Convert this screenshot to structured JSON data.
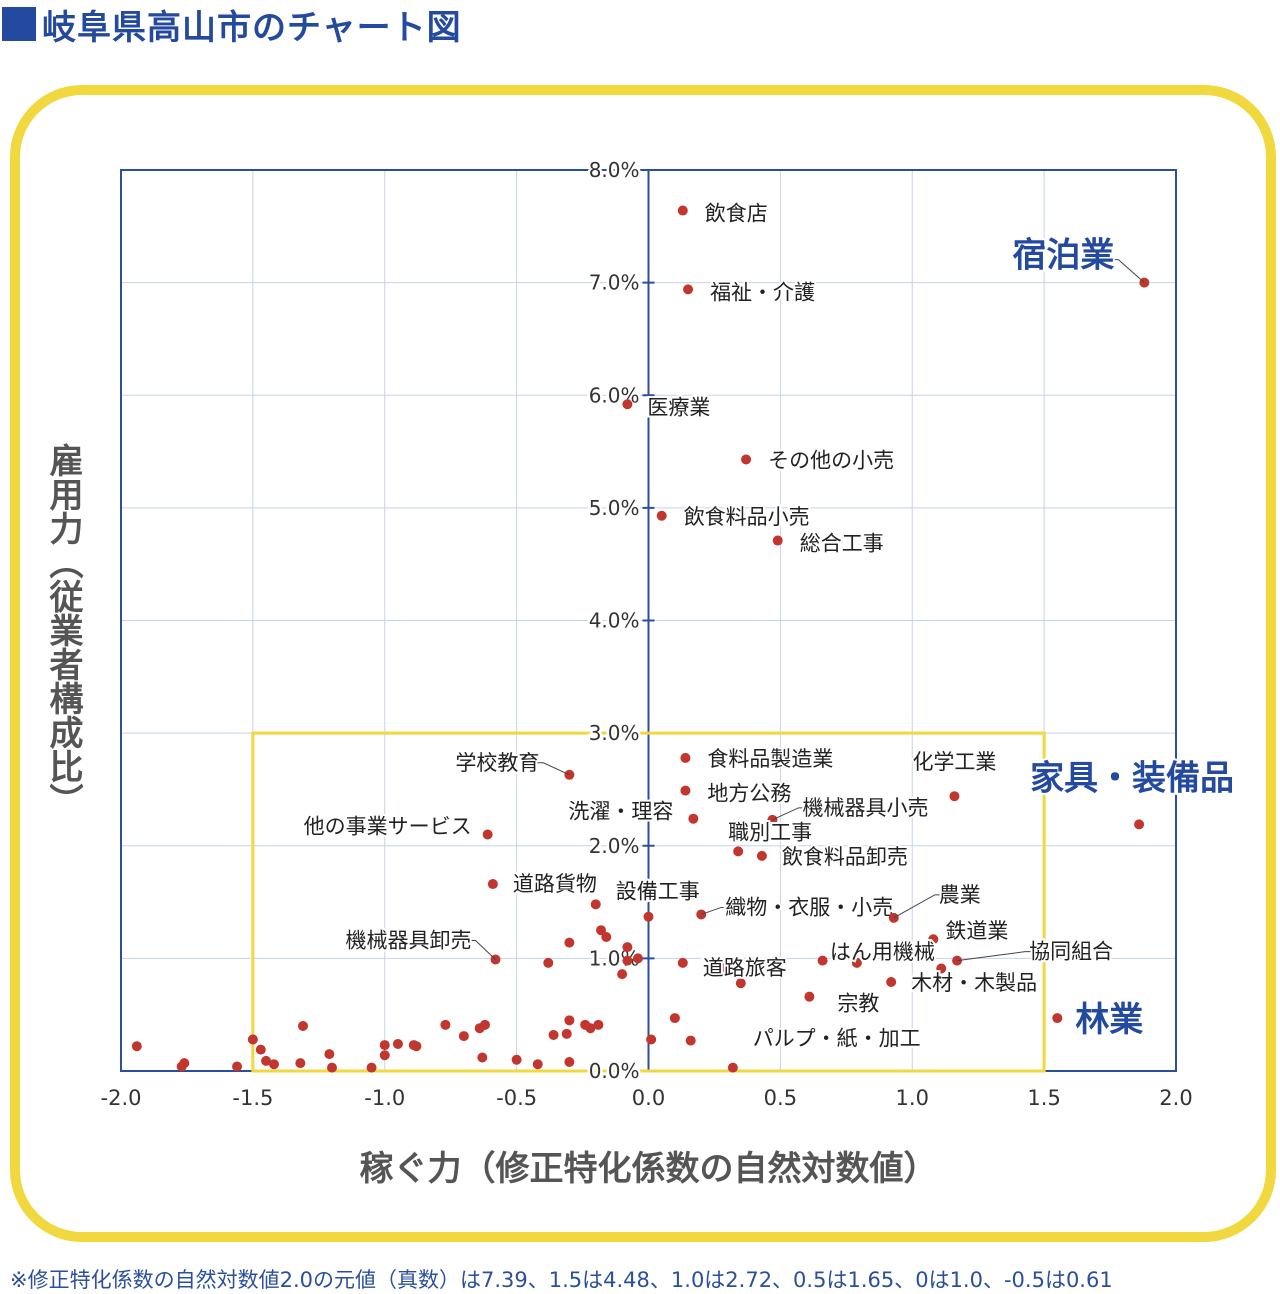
{
  "title": "岐阜県高山市のチャート図",
  "footnote": "※修正特化係数の自然対数値2.0の元値（真数）は7.39、1.5は4.48、1.0は2.72、0.5は1.65、0は1.0、-0.5は0.61",
  "colors": {
    "accent": "#244aa0",
    "frame": "#f0d83e",
    "point": "#c1362e",
    "grid": "#c5d3e8",
    "axis": "#2b4f9d"
  },
  "chart_data": {
    "type": "scatter",
    "xlabel": "稼ぐ力（修正特化係数の自然対数値）",
    "ylabel": "雇用力（従業者構成比）",
    "xlim": [
      -2.0,
      2.0
    ],
    "ylim": [
      0.0,
      8.0
    ],
    "x_ticks": [
      "-2.0",
      "-1.5",
      "-1.0",
      "-0.5",
      "0.0",
      "0.5",
      "1.0",
      "1.5",
      "2.0"
    ],
    "y_ticks": [
      "0.0%",
      "1.0%",
      "2.0%",
      "3.0%",
      "4.0%",
      "5.0%",
      "6.0%",
      "7.0%",
      "8.0%"
    ],
    "grid": true,
    "highlight_box": {
      "x": [
        -1.5,
        1.5
      ],
      "y": [
        0.0,
        3.0
      ]
    },
    "labeled_points": [
      {
        "label": "飲食店",
        "x": 0.13,
        "y": 7.64
      },
      {
        "label": "宿泊業",
        "x": 1.88,
        "y": 7.0,
        "emphasis": true
      },
      {
        "label": "福祉・介護",
        "x": 0.15,
        "y": 6.94
      },
      {
        "label": "医療業",
        "x": -0.08,
        "y": 5.92
      },
      {
        "label": "その他の小売",
        "x": 0.37,
        "y": 5.43
      },
      {
        "label": "飲食料品小売",
        "x": 0.05,
        "y": 4.93
      },
      {
        "label": "総合工事",
        "x": 0.49,
        "y": 4.71
      },
      {
        "label": "食料品製造業",
        "x": 0.14,
        "y": 2.78
      },
      {
        "label": "学校教育",
        "x": -0.3,
        "y": 2.63
      },
      {
        "label": "地方公務",
        "x": 0.14,
        "y": 2.49
      },
      {
        "label": "化学工業",
        "x": 1.16,
        "y": 2.44
      },
      {
        "label": "家具・装備品",
        "x": 1.86,
        "y": 2.19,
        "emphasis": true
      },
      {
        "label": "洗濯・理容",
        "x": 0.17,
        "y": 2.24
      },
      {
        "label": "機械器具小売",
        "x": 0.47,
        "y": 2.23
      },
      {
        "label": "他の事業サービス",
        "x": -0.61,
        "y": 2.1
      },
      {
        "label": "職別工事",
        "x": 0.34,
        "y": 1.95
      },
      {
        "label": "飲食料品卸売",
        "x": 0.43,
        "y": 1.91
      },
      {
        "label": "道路貨物",
        "x": -0.59,
        "y": 1.66
      },
      {
        "label": "設備工事",
        "x": -0.2,
        "y": 1.48
      },
      {
        "label": "織物・衣服・小売",
        "x": 0.2,
        "y": 1.39
      },
      {
        "label": "農業",
        "x": 0.93,
        "y": 1.36
      },
      {
        "label": "鉄道業",
        "x": 1.08,
        "y": 1.17
      },
      {
        "label": "機械器具卸売",
        "x": -0.58,
        "y": 0.99
      },
      {
        "label": "道路旅客",
        "x": 0.13,
        "y": 0.96
      },
      {
        "label": "はん用機械",
        "x": 0.79,
        "y": 0.96
      },
      {
        "label": "協同組合",
        "x": 1.17,
        "y": 0.98
      },
      {
        "label": "木材・木製品",
        "x": 0.92,
        "y": 0.79
      },
      {
        "label": "宗教",
        "x": 0.61,
        "y": 0.66
      },
      {
        "label": "林業",
        "x": 1.55,
        "y": 0.47,
        "emphasis": true
      },
      {
        "label": "パルプ・紙・加工",
        "x": 0.16,
        "y": 0.27
      }
    ],
    "unlabeled_points": [
      {
        "x": -1.94,
        "y": 0.22
      },
      {
        "x": -1.77,
        "y": 0.04
      },
      {
        "x": -1.76,
        "y": 0.07
      },
      {
        "x": -1.56,
        "y": 0.04
      },
      {
        "x": -1.5,
        "y": 0.28
      },
      {
        "x": -1.47,
        "y": 0.19
      },
      {
        "x": -1.45,
        "y": 0.09
      },
      {
        "x": -1.42,
        "y": 0.06
      },
      {
        "x": -1.32,
        "y": 0.07
      },
      {
        "x": -1.31,
        "y": 0.4
      },
      {
        "x": -1.21,
        "y": 0.15
      },
      {
        "x": -1.2,
        "y": 0.03
      },
      {
        "x": -1.05,
        "y": 0.03
      },
      {
        "x": -1.0,
        "y": 0.14
      },
      {
        "x": -1.0,
        "y": 0.23
      },
      {
        "x": -0.95,
        "y": 0.24
      },
      {
        "x": -0.89,
        "y": 0.23
      },
      {
        "x": -0.88,
        "y": 0.22
      },
      {
        "x": -0.77,
        "y": 0.41
      },
      {
        "x": -0.7,
        "y": 0.31
      },
      {
        "x": -0.64,
        "y": 0.38
      },
      {
        "x": -0.63,
        "y": 0.12
      },
      {
        "x": -0.62,
        "y": 0.41
      },
      {
        "x": -0.5,
        "y": 0.1
      },
      {
        "x": -0.42,
        "y": 0.06
      },
      {
        "x": -0.38,
        "y": 0.96
      },
      {
        "x": -0.36,
        "y": 0.32
      },
      {
        "x": -0.31,
        "y": 0.33
      },
      {
        "x": -0.3,
        "y": 0.08
      },
      {
        "x": -0.3,
        "y": 1.14
      },
      {
        "x": -0.3,
        "y": 0.45
      },
      {
        "x": -0.24,
        "y": 0.41
      },
      {
        "x": -0.22,
        "y": 0.38
      },
      {
        "x": -0.19,
        "y": 0.41
      },
      {
        "x": -0.18,
        "y": 1.25
      },
      {
        "x": -0.16,
        "y": 1.19
      },
      {
        "x": -0.1,
        "y": 0.86
      },
      {
        "x": -0.08,
        "y": 1.1
      },
      {
        "x": -0.08,
        "y": 0.98
      },
      {
        "x": -0.04,
        "y": 1.0
      },
      {
        "x": 0.0,
        "y": 1.37
      },
      {
        "x": 0.01,
        "y": 0.28
      },
      {
        "x": 0.1,
        "y": 0.47
      },
      {
        "x": 0.28,
        "y": 0.92
      },
      {
        "x": 0.32,
        "y": 0.03
      },
      {
        "x": 0.35,
        "y": 0.78
      },
      {
        "x": 0.66,
        "y": 0.98
      },
      {
        "x": 1.11,
        "y": 0.91
      }
    ]
  }
}
